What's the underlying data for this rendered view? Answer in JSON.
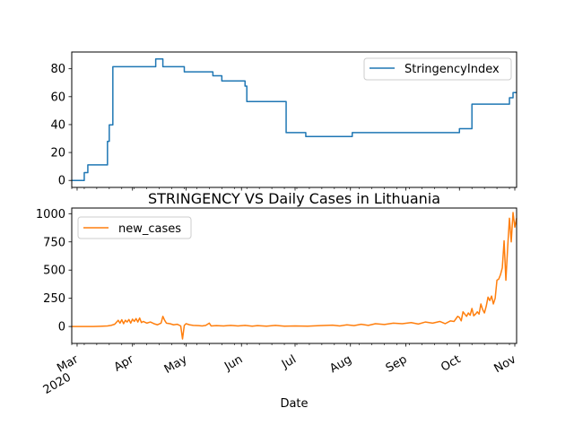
{
  "chart_data": [
    {
      "type": "line",
      "title": "",
      "xlabel": "",
      "ylabel": "",
      "xlim": [
        "2020-02-27",
        "2020-11-02"
      ],
      "ylim": [
        -5,
        92
      ],
      "yticks": [
        0,
        20,
        40,
        60,
        80
      ],
      "x_tick_labels_shown": false,
      "legend": {
        "position": "upper right",
        "entries": [
          "StringencyIndex"
        ]
      },
      "series": [
        {
          "name": "StringencyIndex",
          "color": "#1f77b4",
          "step": true,
          "points": [
            [
              "2020-02-27",
              0
            ],
            [
              "2020-03-04",
              0
            ],
            [
              "2020-03-05",
              5.56
            ],
            [
              "2020-03-06",
              5.56
            ],
            [
              "2020-03-07",
              11.11
            ],
            [
              "2020-03-17",
              11.11
            ],
            [
              "2020-03-18",
              28
            ],
            [
              "2020-03-19",
              39.81
            ],
            [
              "2020-03-20",
              39.81
            ],
            [
              "2020-03-21",
              81.48
            ],
            [
              "2020-04-13",
              81.48
            ],
            [
              "2020-04-14",
              87.04
            ],
            [
              "2020-04-17",
              87.04
            ],
            [
              "2020-04-18",
              81.48
            ],
            [
              "2020-04-29",
              81.48
            ],
            [
              "2020-04-30",
              77.78
            ],
            [
              "2020-05-15",
              77.78
            ],
            [
              "2020-05-16",
              75
            ],
            [
              "2020-05-20",
              75
            ],
            [
              "2020-05-21",
              71.3
            ],
            [
              "2020-06-02",
              71.3
            ],
            [
              "2020-06-03",
              67.59
            ],
            [
              "2020-06-04",
              56.48
            ],
            [
              "2020-06-25",
              56.48
            ],
            [
              "2020-06-26",
              34.26
            ],
            [
              "2020-07-06",
              34.26
            ],
            [
              "2020-07-07",
              31.48
            ],
            [
              "2020-08-01",
              31.48
            ],
            [
              "2020-08-02",
              34.26
            ],
            [
              "2020-09-30",
              34.26
            ],
            [
              "2020-10-01",
              37.04
            ],
            [
              "2020-10-07",
              37.04
            ],
            [
              "2020-10-08",
              54.63
            ],
            [
              "2020-10-28",
              54.63
            ],
            [
              "2020-10-29",
              59.26
            ],
            [
              "2020-10-31",
              62.96
            ],
            [
              "2020-11-02",
              62.96
            ]
          ]
        }
      ]
    },
    {
      "type": "line",
      "title": "STRINGENCY VS Daily Cases in Lithuania",
      "xlabel": "Date",
      "ylabel": "",
      "xlim": [
        "2020-02-27",
        "2020-11-02"
      ],
      "ylim": [
        -150,
        1050
      ],
      "yticks": [
        0,
        250,
        500,
        750,
        1000
      ],
      "x_ticks": [
        {
          "date": "2020-03-01",
          "label": "Mar",
          "sublabel": "2020"
        },
        {
          "date": "2020-04-01",
          "label": "Apr"
        },
        {
          "date": "2020-05-01",
          "label": "May"
        },
        {
          "date": "2020-06-01",
          "label": "Jun"
        },
        {
          "date": "2020-07-01",
          "label": "Jul"
        },
        {
          "date": "2020-08-01",
          "label": "Aug"
        },
        {
          "date": "2020-09-01",
          "label": "Sep"
        },
        {
          "date": "2020-10-01",
          "label": "Oct"
        },
        {
          "date": "2020-11-01",
          "label": "Nov"
        }
      ],
      "legend": {
        "position": "upper left",
        "entries": [
          "new_cases"
        ]
      },
      "series": [
        {
          "name": "new_cases",
          "color": "#ff7f0e",
          "step": false,
          "points": [
            [
              "2020-02-27",
              0
            ],
            [
              "2020-03-10",
              0
            ],
            [
              "2020-03-14",
              2
            ],
            [
              "2020-03-18",
              5
            ],
            [
              "2020-03-20",
              10
            ],
            [
              "2020-03-22",
              20
            ],
            [
              "2020-03-24",
              55
            ],
            [
              "2020-03-25",
              30
            ],
            [
              "2020-03-26",
              60
            ],
            [
              "2020-03-27",
              25
            ],
            [
              "2020-03-28",
              55
            ],
            [
              "2020-03-29",
              40
            ],
            [
              "2020-03-30",
              62
            ],
            [
              "2020-03-31",
              30
            ],
            [
              "2020-04-01",
              65
            ],
            [
              "2020-04-02",
              45
            ],
            [
              "2020-04-03",
              70
            ],
            [
              "2020-04-04",
              40
            ],
            [
              "2020-04-05",
              75
            ],
            [
              "2020-04-06",
              35
            ],
            [
              "2020-04-07",
              45
            ],
            [
              "2020-04-09",
              30
            ],
            [
              "2020-04-11",
              40
            ],
            [
              "2020-04-13",
              25
            ],
            [
              "2020-04-15",
              15
            ],
            [
              "2020-04-17",
              30
            ],
            [
              "2020-04-18",
              90
            ],
            [
              "2020-04-19",
              55
            ],
            [
              "2020-04-20",
              30
            ],
            [
              "2020-04-22",
              25
            ],
            [
              "2020-04-24",
              15
            ],
            [
              "2020-04-26",
              20
            ],
            [
              "2020-04-28",
              5
            ],
            [
              "2020-04-29",
              -110
            ],
            [
              "2020-04-30",
              10
            ],
            [
              "2020-05-01",
              25
            ],
            [
              "2020-05-03",
              15
            ],
            [
              "2020-05-05",
              10
            ],
            [
              "2020-05-08",
              8
            ],
            [
              "2020-05-10",
              5
            ],
            [
              "2020-05-12",
              10
            ],
            [
              "2020-05-14",
              30
            ],
            [
              "2020-05-15",
              5
            ],
            [
              "2020-05-18",
              8
            ],
            [
              "2020-05-22",
              5
            ],
            [
              "2020-05-26",
              10
            ],
            [
              "2020-05-30",
              5
            ],
            [
              "2020-06-03",
              10
            ],
            [
              "2020-06-07",
              3
            ],
            [
              "2020-06-10",
              8
            ],
            [
              "2020-06-15",
              3
            ],
            [
              "2020-06-20",
              10
            ],
            [
              "2020-06-25",
              3
            ],
            [
              "2020-07-01",
              5
            ],
            [
              "2020-07-08",
              3
            ],
            [
              "2020-07-15",
              8
            ],
            [
              "2020-07-22",
              12
            ],
            [
              "2020-07-26",
              5
            ],
            [
              "2020-07-30",
              15
            ],
            [
              "2020-08-03",
              8
            ],
            [
              "2020-08-07",
              20
            ],
            [
              "2020-08-11",
              10
            ],
            [
              "2020-08-15",
              25
            ],
            [
              "2020-08-20",
              18
            ],
            [
              "2020-08-25",
              30
            ],
            [
              "2020-08-30",
              25
            ],
            [
              "2020-09-04",
              35
            ],
            [
              "2020-09-08",
              22
            ],
            [
              "2020-09-12",
              40
            ],
            [
              "2020-09-16",
              30
            ],
            [
              "2020-09-20",
              45
            ],
            [
              "2020-09-23",
              25
            ],
            [
              "2020-09-26",
              50
            ],
            [
              "2020-09-28",
              45
            ],
            [
              "2020-09-30",
              90
            ],
            [
              "2020-10-01",
              80
            ],
            [
              "2020-10-02",
              50
            ],
            [
              "2020-10-03",
              130
            ],
            [
              "2020-10-04",
              110
            ],
            [
              "2020-10-05",
              90
            ],
            [
              "2020-10-06",
              120
            ],
            [
              "2020-10-07",
              100
            ],
            [
              "2020-10-08",
              160
            ],
            [
              "2020-10-09",
              95
            ],
            [
              "2020-10-10",
              110
            ],
            [
              "2020-10-11",
              130
            ],
            [
              "2020-10-12",
              110
            ],
            [
              "2020-10-13",
              200
            ],
            [
              "2020-10-14",
              150
            ],
            [
              "2020-10-15",
              120
            ],
            [
              "2020-10-16",
              180
            ],
            [
              "2020-10-17",
              260
            ],
            [
              "2020-10-18",
              230
            ],
            [
              "2020-10-19",
              270
            ],
            [
              "2020-10-20",
              200
            ],
            [
              "2020-10-21",
              250
            ],
            [
              "2020-10-22",
              410
            ],
            [
              "2020-10-23",
              420
            ],
            [
              "2020-10-24",
              460
            ],
            [
              "2020-10-25",
              520
            ],
            [
              "2020-10-26",
              760
            ],
            [
              "2020-10-27",
              410
            ],
            [
              "2020-10-28",
              700
            ],
            [
              "2020-10-29",
              960
            ],
            [
              "2020-10-30",
              750
            ],
            [
              "2020-10-31",
              1010
            ],
            [
              "2020-11-01",
              880
            ],
            [
              "2020-11-02",
              960
            ]
          ]
        }
      ]
    }
  ]
}
